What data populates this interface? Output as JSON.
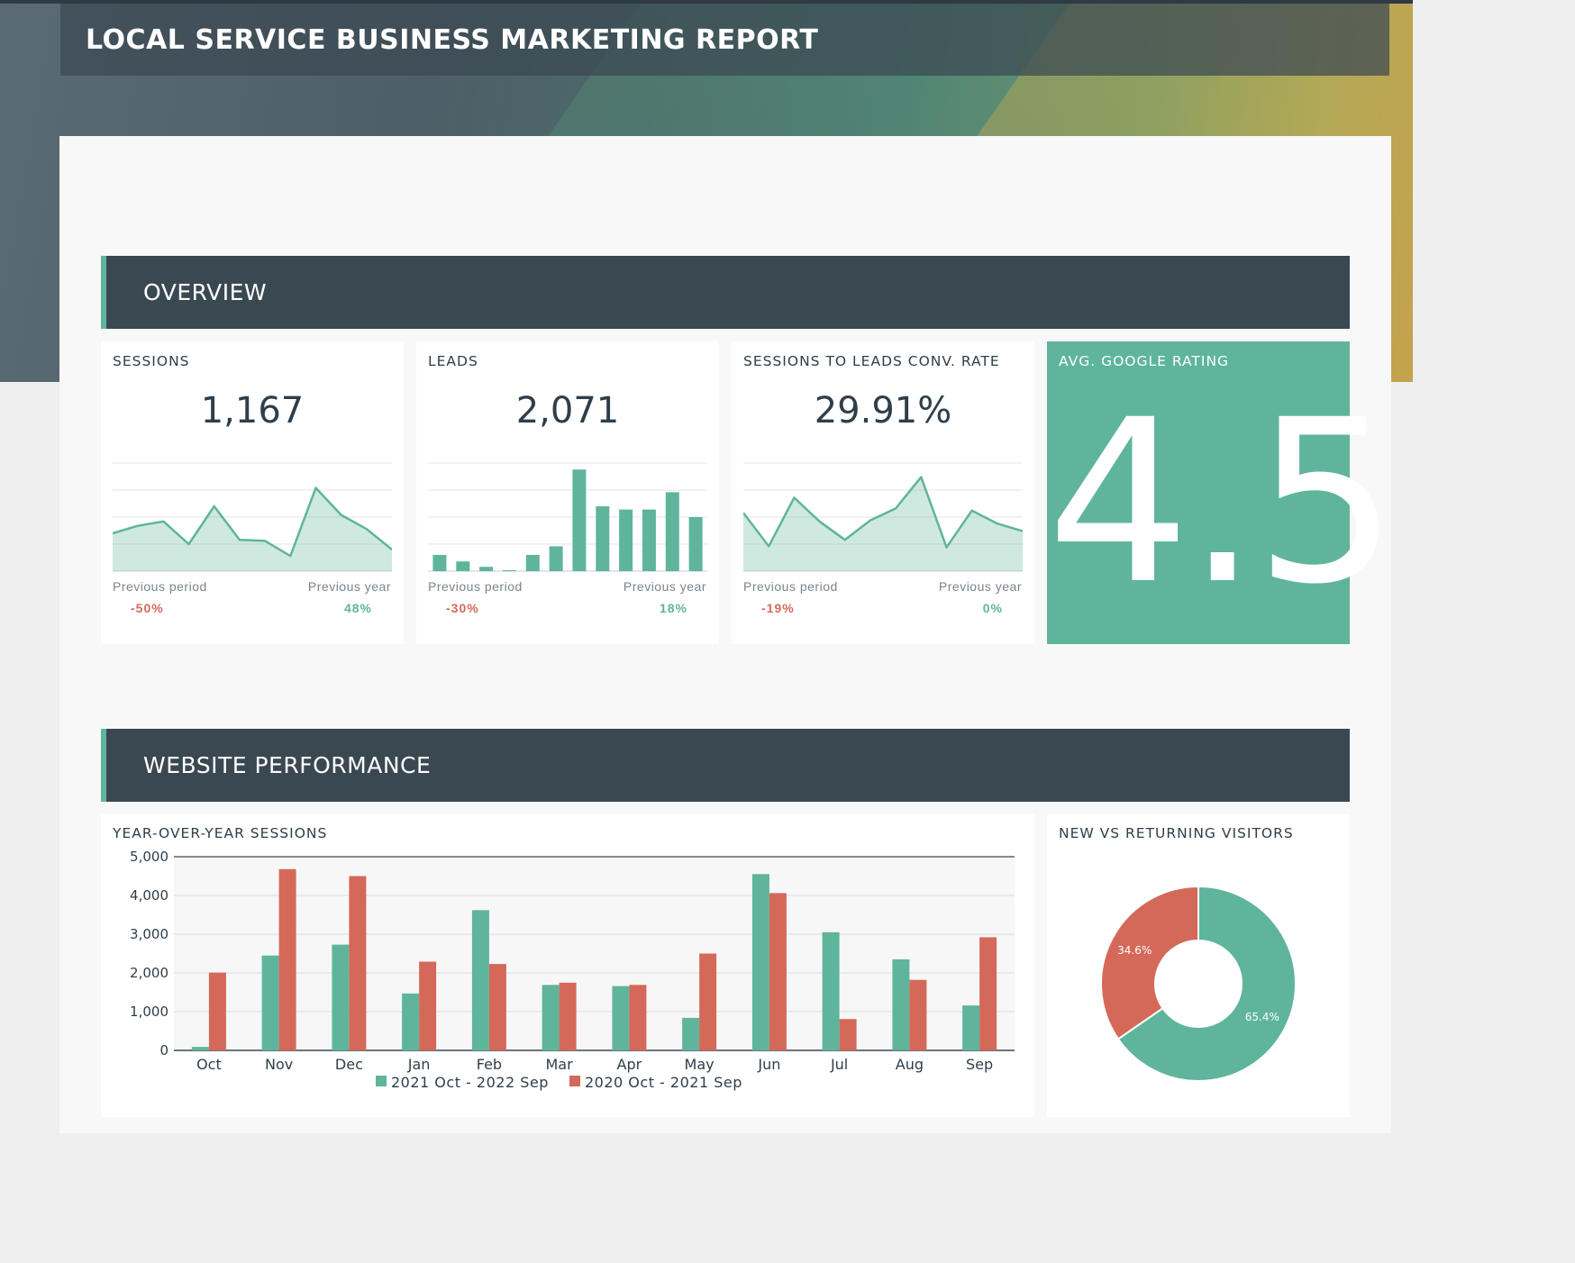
{
  "report": {
    "title": "LOCAL SERVICE BUSINESS MARKETING REPORT"
  },
  "sections": {
    "overview": "OVERVIEW",
    "website": "WEBSITE PERFORMANCE"
  },
  "kpis": {
    "sessions": {
      "label": "SESSIONS",
      "value": "1,167",
      "prev_period_label": "Previous period",
      "prev_period_value": "-50%",
      "prev_year_label": "Previous year",
      "prev_year_value": "48%"
    },
    "leads": {
      "label": "LEADS",
      "value": "2,071",
      "prev_period_label": "Previous period",
      "prev_period_value": "-30%",
      "prev_year_label": "Previous year",
      "prev_year_value": "18%"
    },
    "conv_rate": {
      "label": "SESSIONS TO LEADS CONV. RATE",
      "value": "29.91%",
      "prev_period_label": "Previous period",
      "prev_period_value": "-19%",
      "prev_year_label": "Previous year",
      "prev_year_value": "0%"
    },
    "rating": {
      "label": "AVG. GOOGLE RATING",
      "value": "4.5"
    }
  },
  "colors": {
    "teal": "#5fb59c",
    "red": "#d4695a",
    "dark": "#3a4852"
  },
  "chart_data": [
    {
      "type": "area",
      "name": "sessions-sparkline",
      "values": [
        0.35,
        0.42,
        0.46,
        0.25,
        0.6,
        0.29,
        0.28,
        0.14,
        0.77,
        0.52,
        0.39,
        0.2
      ]
    },
    {
      "type": "bar",
      "name": "leads-sparkline",
      "values": [
        0.15,
        0.09,
        0.04,
        0.005,
        0.15,
        0.23,
        0.94,
        0.6,
        0.57,
        0.57,
        0.73,
        0.5
      ]
    },
    {
      "type": "area",
      "name": "conv-rate-sparkline",
      "values": [
        0.54,
        0.23,
        0.68,
        0.46,
        0.29,
        0.47,
        0.58,
        0.87,
        0.22,
        0.56,
        0.44,
        0.37
      ]
    },
    {
      "type": "bar",
      "name": "yoy-sessions",
      "title": "YEAR-OVER-YEAR SESSIONS",
      "categories": [
        "Oct",
        "Nov",
        "Dec",
        "Jan",
        "Feb",
        "Mar",
        "Apr",
        "May",
        "Jun",
        "Jul",
        "Aug",
        "Sep"
      ],
      "series": [
        {
          "name": "2021 Oct - 2022 Sep",
          "color": "#5fb59c",
          "values": [
            90,
            2450,
            2730,
            1470,
            3620,
            1690,
            1660,
            840,
            4550,
            3050,
            2350,
            1160
          ]
        },
        {
          "name": "2020 Oct - 2021 Sep",
          "color": "#d4695a",
          "values": [
            2010,
            4680,
            4500,
            2290,
            2230,
            1750,
            1690,
            2500,
            4060,
            810,
            1820,
            2920
          ]
        }
      ],
      "ylim": [
        0,
        5000
      ],
      "yticks": [
        "0",
        "1,000",
        "2,000",
        "3,000",
        "4,000",
        "5,000"
      ],
      "legend": "bottom",
      "grid": true
    },
    {
      "type": "pie",
      "name": "new-vs-returning",
      "title": "NEW VS RETURNING VISITORS",
      "slices": [
        {
          "value": 65.4,
          "label": "65.4%",
          "color": "#5fb59c"
        },
        {
          "value": 34.6,
          "label": "34.6%",
          "color": "#d4695a"
        }
      ]
    }
  ]
}
